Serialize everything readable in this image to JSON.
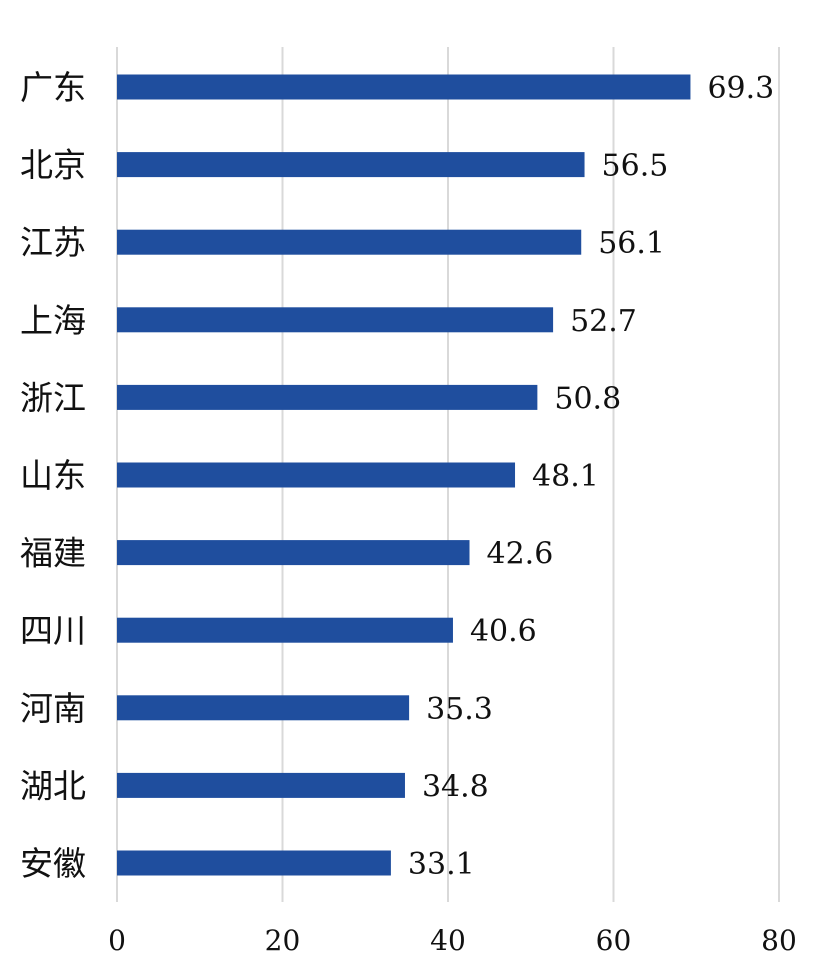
{
  "chart_data": {
    "type": "bar",
    "orientation": "horizontal",
    "categories": [
      "广东",
      "北京",
      "江苏",
      "上海",
      "浙江",
      "山东",
      "福建",
      "四川",
      "河南",
      "湖北",
      "安徽"
    ],
    "values": [
      69.3,
      56.5,
      56.1,
      52.7,
      50.8,
      48.1,
      42.6,
      40.6,
      35.3,
      34.8,
      33.1
    ],
    "value_labels": [
      "69.3",
      "56.5",
      "56.1",
      "52.7",
      "50.8",
      "48.1",
      "42.6",
      "40.6",
      "35.3",
      "34.8",
      "33.1"
    ],
    "xlim": [
      0,
      80
    ],
    "xticks": [
      0,
      20,
      40,
      60,
      80
    ],
    "xtick_labels": [
      "0",
      "20",
      "40",
      "60",
      "80"
    ],
    "grid": "vertical",
    "bar_color": "#1f4e9e",
    "grid_color": "#d9d9d9",
    "legend": "none"
  }
}
